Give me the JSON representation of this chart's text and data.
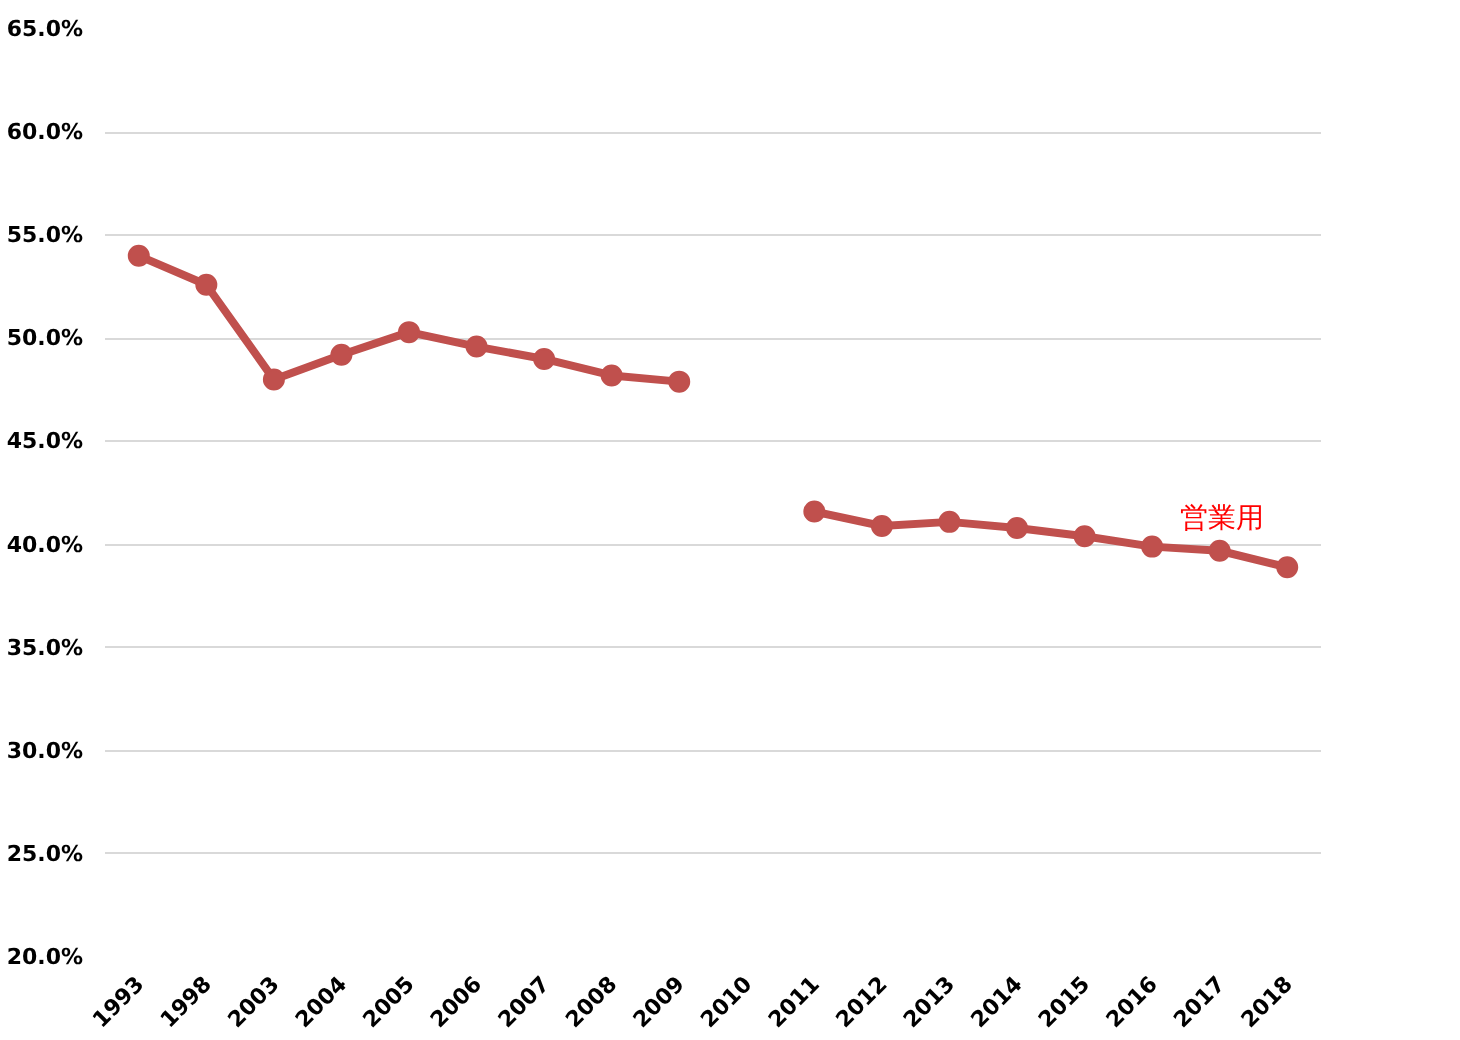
{
  "chart_data": {
    "type": "line",
    "categories": [
      "1993",
      "1998",
      "2003",
      "2004",
      "2005",
      "2006",
      "2007",
      "2008",
      "2009",
      "2010",
      "2011",
      "2012",
      "2013",
      "2014",
      "2015",
      "2016",
      "2017",
      "2018"
    ],
    "series": [
      {
        "name": "営業用",
        "color": "#c0504d",
        "values": [
          54.0,
          52.6,
          48.0,
          49.2,
          50.3,
          49.6,
          49.0,
          48.2,
          47.9,
          null,
          41.6,
          40.9,
          41.1,
          40.8,
          40.4,
          39.9,
          39.7,
          38.9
        ]
      }
    ],
    "ylim": [
      20,
      65
    ],
    "yticks": [
      {
        "value": 20,
        "label": "20.0%"
      },
      {
        "value": 25,
        "label": "25.0%"
      },
      {
        "value": 30,
        "label": "30.0%"
      },
      {
        "value": 35,
        "label": "35.0%"
      },
      {
        "value": 40,
        "label": "40.0%"
      },
      {
        "value": 45,
        "label": "45.0%"
      },
      {
        "value": 50,
        "label": "50.0%"
      },
      {
        "value": 55,
        "label": "55.0%"
      },
      {
        "value": 60,
        "label": "60.0%"
      },
      {
        "value": 65,
        "label": "65.0%"
      }
    ],
    "grid": "y",
    "marker": "circle",
    "line_style": "solid"
  }
}
